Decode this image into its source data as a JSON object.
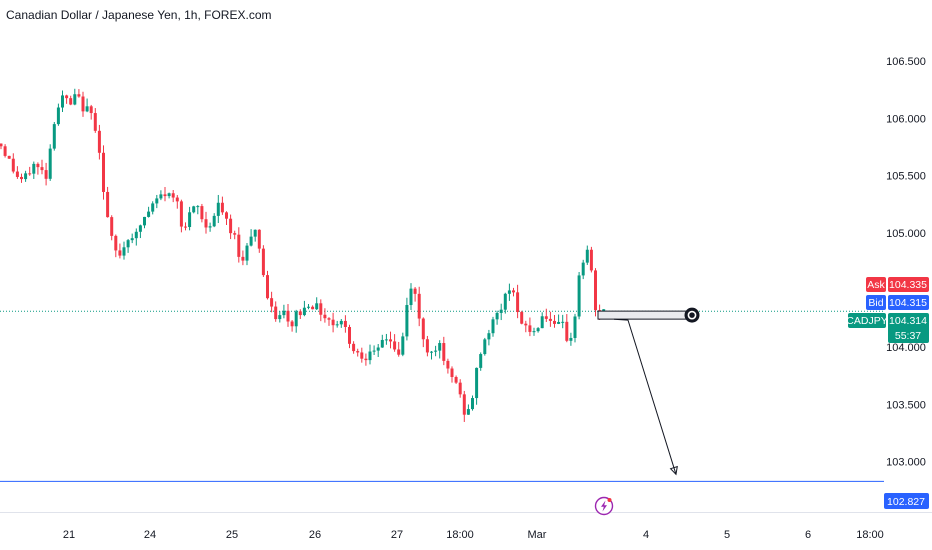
{
  "title": "Canadian Dollar / Japanese Yen, 1h, FOREX.com",
  "colors": {
    "up": "#089981",
    "down": "#f23645",
    "ask": "#f23645",
    "bid": "#2962ff",
    "last": "#089981",
    "target_line": "#2962ff",
    "drawing": "#131722",
    "event_icon": "#9c27b0"
  },
  "labels": {
    "ask_tag": "Ask",
    "ask_value": "104.335",
    "bid_tag": "Bid",
    "bid_value": "104.315",
    "symbol": "CADJPY",
    "last_value": "104.314",
    "countdown": "55:37",
    "target_value": "102.827"
  },
  "icons": {
    "event": "lightning-icon",
    "marker": "target-circle-icon"
  },
  "chart_data": {
    "type": "candlestick",
    "title": "Canadian Dollar / Japanese Yen, 1h, FOREX.com",
    "y_ticks": [
      "106.500",
      "106.000",
      "105.500",
      "105.000",
      "104.000",
      "103.500",
      "103.000"
    ],
    "y_tick_values": [
      106.5,
      106.0,
      105.5,
      105.0,
      104.0,
      103.5,
      103.0
    ],
    "ylim": [
      102.62,
      106.86
    ],
    "x_ticks": [
      "21",
      "24",
      "25",
      "26",
      "27",
      "18:00",
      "Mar",
      "4",
      "5",
      "6",
      "18:00"
    ],
    "last_price": 104.314,
    "ask": 104.335,
    "bid": 104.315,
    "target_price": 102.827,
    "zone": [
      104.315,
      104.245
    ],
    "close_path": [
      [
        0,
        105.78
      ],
      [
        8,
        105.65
      ],
      [
        16,
        105.5
      ],
      [
        24,
        105.45
      ],
      [
        33,
        105.6
      ],
      [
        40,
        105.55
      ],
      [
        47,
        105.5
      ],
      [
        53,
        105.95
      ],
      [
        58,
        106.1
      ],
      [
        64,
        106.2
      ],
      [
        70,
        106.1
      ],
      [
        76,
        106.2
      ],
      [
        83,
        106.1
      ],
      [
        90,
        106.05
      ],
      [
        95,
        105.95
      ],
      [
        100,
        105.7
      ],
      [
        104,
        105.3
      ],
      [
        110,
        105.0
      ],
      [
        114,
        104.85
      ],
      [
        119,
        104.8
      ],
      [
        125,
        104.9
      ],
      [
        130,
        105.0
      ],
      [
        135,
        104.95
      ],
      [
        142,
        105.1
      ],
      [
        150,
        105.2
      ],
      [
        158,
        105.3
      ],
      [
        166,
        105.35
      ],
      [
        172,
        105.3
      ],
      [
        178,
        105.3
      ],
      [
        183,
        105.0
      ],
      [
        190,
        105.15
      ],
      [
        197,
        105.25
      ],
      [
        204,
        105.05
      ],
      [
        212,
        105.1
      ],
      [
        219,
        105.25
      ],
      [
        224,
        105.15
      ],
      [
        230,
        105.0
      ],
      [
        236,
        104.95
      ],
      [
        242,
        104.7
      ],
      [
        248,
        104.95
      ],
      [
        254,
        105.05
      ],
      [
        259,
        104.9
      ],
      [
        264,
        104.6
      ],
      [
        268,
        104.4
      ],
      [
        272,
        104.3
      ],
      [
        278,
        104.25
      ],
      [
        284,
        104.3
      ],
      [
        290,
        104.15
      ],
      [
        296,
        104.3
      ],
      [
        302,
        104.3
      ],
      [
        309,
        104.4
      ],
      [
        316,
        104.35
      ],
      [
        322,
        104.3
      ],
      [
        328,
        104.25
      ],
      [
        334,
        104.2
      ],
      [
        340,
        104.25
      ],
      [
        346,
        104.15
      ],
      [
        352,
        104.0
      ],
      [
        358,
        103.95
      ],
      [
        364,
        103.9
      ],
      [
        370,
        104.0
      ],
      [
        376,
        103.9
      ],
      [
        382,
        104.05
      ],
      [
        388,
        104.1
      ],
      [
        394,
        104.0
      ],
      [
        400,
        103.9
      ],
      [
        406,
        104.3
      ],
      [
        410,
        104.55
      ],
      [
        414,
        104.5
      ],
      [
        420,
        104.2
      ],
      [
        426,
        104.0
      ],
      [
        432,
        103.95
      ],
      [
        438,
        104.05
      ],
      [
        444,
        103.85
      ],
      [
        450,
        103.75
      ],
      [
        456,
        103.7
      ],
      [
        462,
        103.5
      ],
      [
        466,
        103.4
      ],
      [
        470,
        103.45
      ],
      [
        475,
        103.7
      ],
      [
        480,
        103.95
      ],
      [
        486,
        104.1
      ],
      [
        492,
        104.2
      ],
      [
        498,
        104.3
      ],
      [
        504,
        104.4
      ],
      [
        510,
        104.55
      ],
      [
        514,
        104.5
      ],
      [
        520,
        104.15
      ],
      [
        526,
        104.2
      ],
      [
        532,
        104.1
      ],
      [
        538,
        104.2
      ],
      [
        544,
        104.3
      ],
      [
        549,
        104.25
      ],
      [
        555,
        104.15
      ],
      [
        562,
        104.2
      ],
      [
        568,
        104.05
      ],
      [
        574,
        104.15
      ],
      [
        578,
        104.6
      ],
      [
        583,
        104.75
      ],
      [
        588,
        104.85
      ],
      [
        592,
        104.6
      ],
      [
        596,
        104.3
      ],
      [
        600,
        104.25
      ],
      [
        604,
        104.31
      ]
    ]
  }
}
